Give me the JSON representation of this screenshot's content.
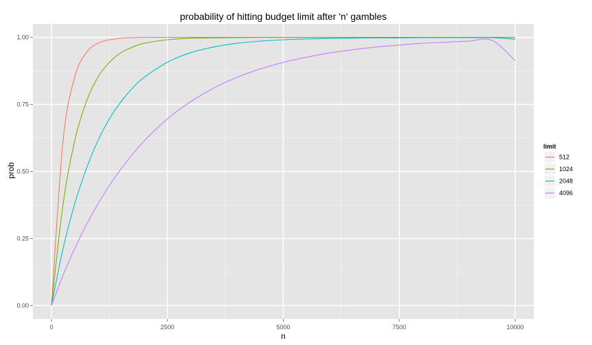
{
  "chart_data": {
    "type": "line",
    "title": "probability of hitting budget limit after 'n' gambles",
    "xlabel": "n",
    "ylabel": "prob",
    "xlim": [
      -400,
      10400
    ],
    "ylim": [
      -0.05,
      1.05
    ],
    "x_ticks": [
      0,
      2500,
      5000,
      7500,
      10000
    ],
    "x_tick_labels": [
      "0",
      "2500",
      "5000",
      "7500",
      "10000"
    ],
    "y_ticks": [
      0,
      0.25,
      0.5,
      0.75,
      1.0
    ],
    "y_tick_labels": [
      "0.00",
      "0.25",
      "0.50",
      "0.75",
      "1.00"
    ],
    "grid": true,
    "legend": {
      "title": "limit",
      "position": "right"
    },
    "x": [
      0,
      250,
      500,
      750,
      1000,
      1250,
      1500,
      1750,
      2000,
      2500,
      3000,
      3500,
      4000,
      4500,
      5000,
      5500,
      6000,
      6500,
      7000,
      7500,
      8000,
      8500,
      9000,
      9500,
      10000
    ],
    "series": [
      {
        "name": "512",
        "color": "#F8766D",
        "values": [
          0,
          0.614,
          0.851,
          0.943,
          0.978,
          0.991,
          0.997,
          0.999,
          1.0,
          1.0,
          1.0,
          1.0,
          1.0,
          1.0,
          1.0,
          1.0,
          1.0,
          1.0,
          1.0,
          1.0,
          1.0,
          1.0,
          1.0,
          1.0,
          1.0
        ]
      },
      {
        "name": "1024",
        "color": "#7CAE00",
        "values": [
          0,
          0.378,
          0.614,
          0.759,
          0.851,
          0.907,
          0.943,
          0.964,
          0.978,
          0.991,
          0.997,
          0.998,
          0.999,
          1.0,
          1.0,
          1.0,
          1.0,
          1.0,
          1.0,
          1.0,
          1.0,
          1.0,
          1.0,
          1.0,
          1.0
        ]
      },
      {
        "name": "2048",
        "color": "#00BFC4",
        "values": [
          0,
          0.212,
          0.378,
          0.509,
          0.614,
          0.696,
          0.76,
          0.811,
          0.851,
          0.907,
          0.943,
          0.964,
          0.978,
          0.986,
          0.991,
          0.994,
          0.996,
          0.997,
          0.998,
          0.998,
          0.999,
          0.999,
          0.999,
          0.999,
          0.993
        ]
      },
      {
        "name": "4096",
        "color": "#C77CFF",
        "values": [
          0,
          0.113,
          0.212,
          0.3,
          0.378,
          0.448,
          0.509,
          0.564,
          0.614,
          0.696,
          0.76,
          0.811,
          0.851,
          0.882,
          0.907,
          0.926,
          0.942,
          0.954,
          0.964,
          0.971,
          0.978,
          0.982,
          0.986,
          0.989,
          0.913
        ]
      }
    ]
  }
}
